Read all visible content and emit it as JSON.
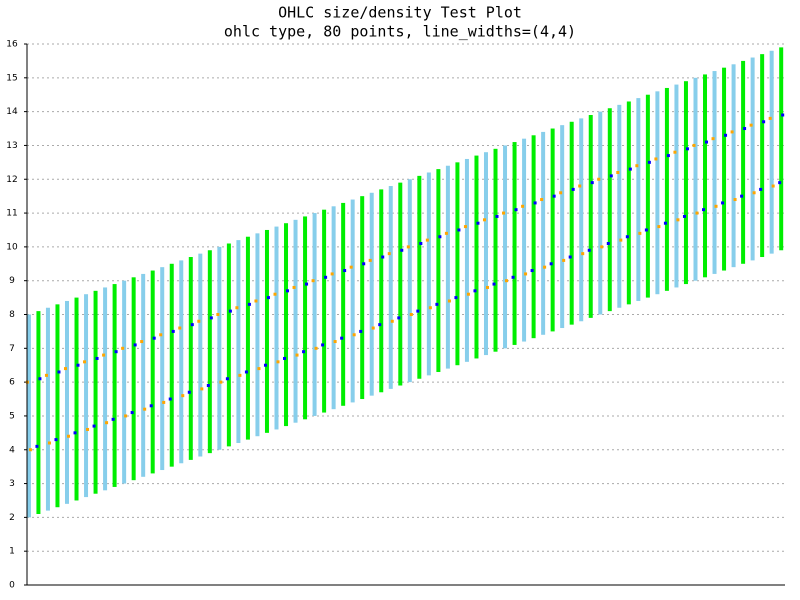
{
  "chart_data": {
    "type": "ohlc",
    "title": "OHLC size/density Test Plot",
    "subtitle": "ohlc type, 80 points, line_widths=(4,4)",
    "x": [
      0,
      1,
      2,
      3,
      4,
      5,
      6,
      7,
      8,
      9,
      10,
      11,
      12,
      13,
      14,
      15,
      16,
      17,
      18,
      19,
      20,
      21,
      22,
      23,
      24,
      25,
      26,
      27,
      28,
      29,
      30,
      31,
      32,
      33,
      34,
      35,
      36,
      37,
      38,
      39,
      40,
      41,
      42,
      43,
      44,
      45,
      46,
      47,
      48,
      49,
      50,
      51,
      52,
      53,
      54,
      55,
      56,
      57,
      58,
      59,
      60,
      61,
      62,
      63,
      64,
      65,
      66,
      67,
      68,
      69,
      70,
      71,
      72,
      73,
      74,
      75,
      76,
      77,
      78,
      79
    ],
    "open": [
      6,
      4.1,
      6.2,
      4.3,
      6.4,
      4.5,
      6.6,
      4.7,
      6.8,
      4.9,
      7,
      5.1,
      7.2,
      5.3,
      7.4,
      5.5,
      7.6,
      5.7,
      7.8,
      5.9,
      8,
      6.1,
      8.2,
      6.3,
      8.4,
      6.5,
      8.6,
      6.7,
      8.8,
      6.9,
      9,
      7.1,
      9.2,
      7.3,
      9.4,
      7.5,
      9.6,
      7.7,
      9.8,
      7.9,
      10,
      8.1,
      10.2,
      8.3,
      10.4,
      8.5,
      10.6,
      8.7,
      10.8,
      8.9,
      11,
      9.1,
      11.2,
      9.3,
      11.4,
      9.5,
      11.6,
      9.7,
      11.8,
      9.9,
      12,
      10.1,
      12.2,
      10.3,
      12.4,
      10.5,
      12.6,
      10.7,
      12.8,
      10.9,
      13,
      11.1,
      13.2,
      11.3,
      13.4,
      11.5,
      13.6,
      11.7,
      13.8,
      11.9
    ],
    "high": [
      8,
      8.1,
      8.2,
      8.3,
      8.4,
      8.5,
      8.6,
      8.7,
      8.8,
      8.9,
      9,
      9.1,
      9.2,
      9.3,
      9.4,
      9.5,
      9.6,
      9.7,
      9.8,
      9.9,
      10,
      10.1,
      10.2,
      10.3,
      10.4,
      10.5,
      10.6,
      10.7,
      10.8,
      10.9,
      11,
      11.1,
      11.2,
      11.3,
      11.4,
      11.5,
      11.6,
      11.7,
      11.8,
      11.9,
      12,
      12.1,
      12.2,
      12.3,
      12.4,
      12.5,
      12.6,
      12.7,
      12.8,
      12.9,
      13,
      13.1,
      13.2,
      13.3,
      13.4,
      13.5,
      13.6,
      13.7,
      13.8,
      13.9,
      14,
      14.1,
      14.2,
      14.3,
      14.4,
      14.5,
      14.6,
      14.7,
      14.8,
      14.9,
      15,
      15.1,
      15.2,
      15.3,
      15.4,
      15.5,
      15.6,
      15.7,
      15.8,
      15.9
    ],
    "low": [
      2,
      2.1,
      2.2,
      2.3,
      2.4,
      2.5,
      2.6,
      2.7,
      2.8,
      2.9,
      3,
      3.1,
      3.2,
      3.3,
      3.4,
      3.5,
      3.6,
      3.7,
      3.8,
      3.9,
      4,
      4.1,
      4.2,
      4.3,
      4.4,
      4.5,
      4.6,
      4.7,
      4.8,
      4.9,
      5,
      5.1,
      5.2,
      5.3,
      5.4,
      5.5,
      5.6,
      5.7,
      5.8,
      5.9,
      6,
      6.1,
      6.2,
      6.3,
      6.4,
      6.5,
      6.6,
      6.7,
      6.8,
      6.9,
      7,
      7.1,
      7.2,
      7.3,
      7.4,
      7.5,
      7.6,
      7.7,
      7.8,
      7.9,
      8,
      8.1,
      8.2,
      8.3,
      8.4,
      8.5,
      8.6,
      8.7,
      8.8,
      8.9,
      9,
      9.1,
      9.2,
      9.3,
      9.4,
      9.5,
      9.6,
      9.7,
      9.8,
      9.9
    ],
    "close": [
      4,
      6.1,
      4.2,
      6.3,
      4.4,
      6.5,
      4.6,
      6.7,
      4.8,
      6.9,
      5,
      7.1,
      5.2,
      7.3,
      5.4,
      7.5,
      5.6,
      7.7,
      5.8,
      7.9,
      6,
      8.1,
      6.2,
      8.3,
      6.4,
      8.5,
      6.6,
      8.7,
      6.8,
      8.9,
      7,
      9.1,
      7.2,
      9.3,
      7.4,
      9.5,
      7.6,
      9.7,
      7.8,
      9.9,
      8,
      10.1,
      8.2,
      10.3,
      8.4,
      10.5,
      8.6,
      10.7,
      8.8,
      10.9,
      9,
      11.1,
      9.2,
      11.3,
      9.4,
      11.5,
      9.6,
      11.7,
      9.8,
      11.9,
      10,
      12.1,
      10.2,
      12.3,
      10.4,
      12.5,
      10.6,
      12.7,
      10.8,
      12.9,
      11,
      13.1,
      11.2,
      13.3,
      11.4,
      13.5,
      11.6,
      13.7,
      11.8,
      13.9
    ],
    "up_color": "#00ee00",
    "down_color": "#87ceeb",
    "up_tick_color": "#0000ff",
    "down_tick_color": "#ffa500",
    "xlim": [
      -0.2,
      79.4
    ],
    "ylim": [
      0,
      16
    ],
    "yticks": [
      0,
      1,
      2,
      3,
      4,
      5,
      6,
      7,
      8,
      9,
      10,
      11,
      12,
      13,
      14,
      15,
      16
    ],
    "grid": true
  }
}
